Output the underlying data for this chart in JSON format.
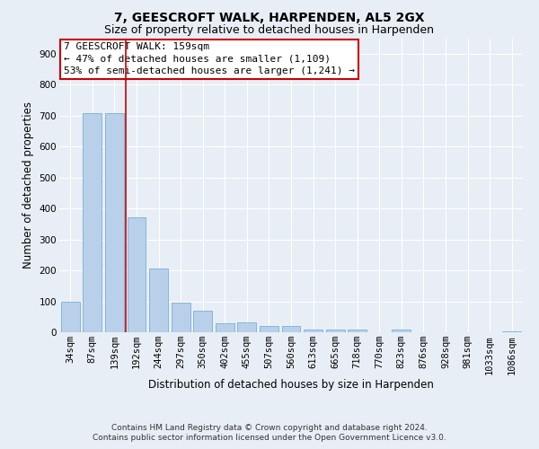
{
  "title1": "7, GEESCROFT WALK, HARPENDEN, AL5 2GX",
  "title2": "Size of property relative to detached houses in Harpenden",
  "xlabel": "Distribution of detached houses by size in Harpenden",
  "ylabel": "Number of detached properties",
  "categories": [
    "34sqm",
    "87sqm",
    "139sqm",
    "192sqm",
    "244sqm",
    "297sqm",
    "350sqm",
    "402sqm",
    "455sqm",
    "507sqm",
    "560sqm",
    "613sqm",
    "665sqm",
    "718sqm",
    "770sqm",
    "823sqm",
    "876sqm",
    "928sqm",
    "981sqm",
    "1033sqm",
    "1086sqm"
  ],
  "values": [
    100,
    707,
    707,
    370,
    205,
    95,
    70,
    30,
    33,
    20,
    20,
    10,
    10,
    10,
    0,
    10,
    0,
    0,
    0,
    0,
    2
  ],
  "bar_color": "#b8d0ea",
  "bar_edge_color": "#7aafd4",
  "vline_x": 2.5,
  "vline_color": "#cc0000",
  "annotation_text": "7 GEESCROFT WALK: 159sqm\n← 47% of detached houses are smaller (1,109)\n53% of semi-detached houses are larger (1,241) →",
  "annotation_box_color": "#ffffff",
  "annotation_box_edge": "#cc0000",
  "ylim": [
    0,
    950
  ],
  "yticks": [
    0,
    100,
    200,
    300,
    400,
    500,
    600,
    700,
    800,
    900
  ],
  "footnote": "Contains HM Land Registry data © Crown copyright and database right 2024.\nContains public sector information licensed under the Open Government Licence v3.0.",
  "background_color": "#e8eef5",
  "grid_color": "#ffffff",
  "title_fontsize": 10,
  "subtitle_fontsize": 9,
  "axis_label_fontsize": 8.5,
  "tick_fontsize": 7.5,
  "annotation_fontsize": 8,
  "footnote_fontsize": 6.5
}
